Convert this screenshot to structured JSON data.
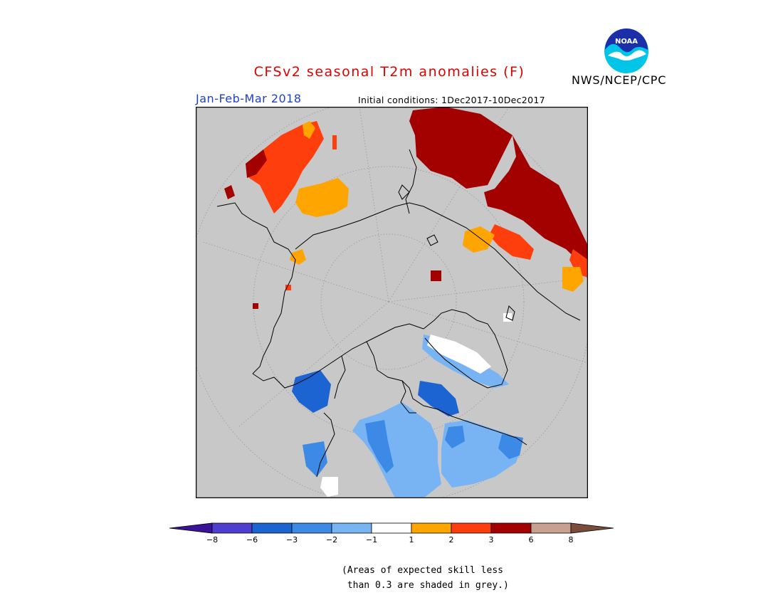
{
  "title": "CFSv2 seasonal T2m anomalies (F)",
  "period": "Jan-Feb-Mar 2018",
  "initial_conditions": "Initial conditions: 1Dec2017-10Dec2017",
  "org": "NWS/NCEP/CPC",
  "logo_text": "NOAA",
  "logo_icon": "noaa-seagull-logo",
  "legend": {
    "colors": [
      "#3a1396",
      "#4e3fce",
      "#1c64d2",
      "#3c8ae6",
      "#78b4f4",
      "#ffffff",
      "#ffa500",
      "#ff3e0d",
      "#a30000",
      "#c8a090",
      "#7a4c3c"
    ],
    "ticks": [
      "−8",
      "−6",
      "−3",
      "−2",
      "−1",
      "1",
      "2",
      "3",
      "6",
      "8"
    ]
  },
  "note_line1": "(Areas of expected skill less",
  "note_line2": " than 0.3 are shaded in grey.)"
}
